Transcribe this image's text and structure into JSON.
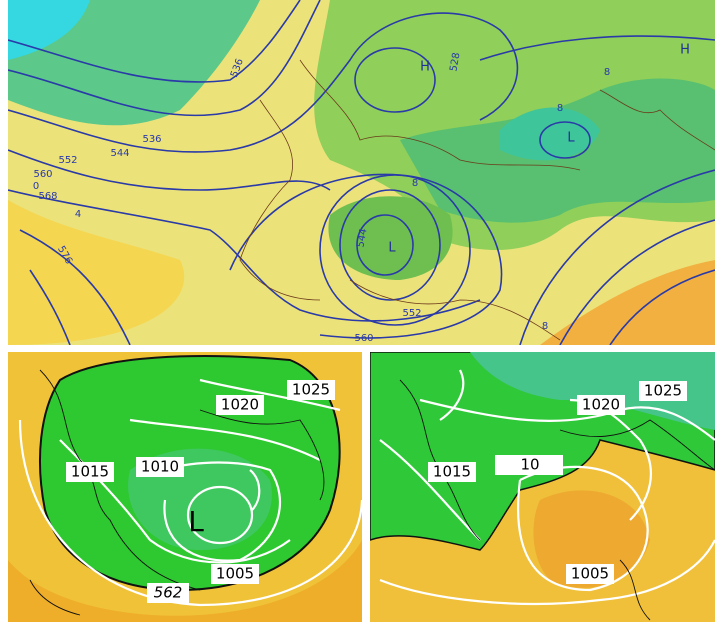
{
  "top_map": {
    "labels": [
      "H",
      "H",
      "L",
      "L",
      "536",
      "536",
      "544",
      "552",
      "560",
      "568",
      "576",
      "528",
      "544",
      "552",
      "560",
      "0",
      "4",
      "8",
      "8",
      "8",
      "8"
    ]
  },
  "bottom_left_map": {
    "labels": [
      "1025",
      "1020",
      "1015",
      "1010",
      "L",
      "1005",
      "562"
    ]
  },
  "bottom_right_map": {
    "labels": [
      "1025",
      "1020",
      "1015",
      "10",
      "1005"
    ]
  }
}
